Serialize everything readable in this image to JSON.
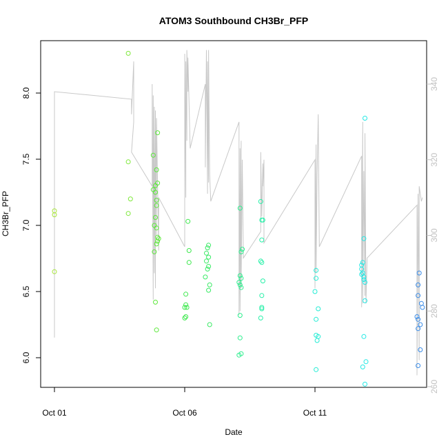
{
  "chart_data": {
    "type": "scatter",
    "title": "ATOM3 Southbound CH3Br_PFP",
    "xlabel": "Date",
    "ylabel": "CH3Br_PFP",
    "xlim": [
      "2016-10-01",
      "2016-10-15.5"
    ],
    "ylim": [
      5.78,
      8.4
    ],
    "y2lim": [
      258.8,
      351.1
    ],
    "x_ticks": [
      {
        "value": "2016-10-01",
        "label": "Oct 01"
      },
      {
        "value": "2016-10-06",
        "label": "Oct 06"
      },
      {
        "value": "2016-10-11",
        "label": "Oct 11"
      }
    ],
    "y_ticks": [
      "6.0",
      "6.5",
      "7.0",
      "7.5",
      "8.0"
    ],
    "y2_ticks": [
      "260",
      "280",
      "300",
      "320",
      "340"
    ],
    "grid": false,
    "legend": "none",
    "point_colors": {
      "early": "#a8e63a",
      "green": "#3ce83c",
      "mid": "#22f08c",
      "cyan": "#22e8d8",
      "blue": "#3a8ce8"
    },
    "secondary_line_color": "#c8c8c8",
    "points": [
      {
        "x": "2016-10-01T00:00",
        "y": 7.11,
        "c": "#a8e63a"
      },
      {
        "x": "2016-10-01T00:00",
        "y": 7.08,
        "c": "#a8e63a"
      },
      {
        "x": "2016-10-01T00:00",
        "y": 6.65,
        "c": "#a8e63a"
      },
      {
        "x": "2016-10-03T20:00",
        "y": 8.3,
        "c": "#7ee83a"
      },
      {
        "x": "2016-10-03T20:00",
        "y": 7.48,
        "c": "#7ee83a"
      },
      {
        "x": "2016-10-03T22:00",
        "y": 7.2,
        "c": "#7ee83a"
      },
      {
        "x": "2016-10-03T20:00",
        "y": 7.09,
        "c": "#7ee83a"
      },
      {
        "x": "2016-10-04T19:00",
        "y": 7.53,
        "c": "#5ce83a"
      },
      {
        "x": "2016-10-04T19:00",
        "y": 7.27,
        "c": "#5ce83a"
      },
      {
        "x": "2016-10-04T21:00",
        "y": 7.25,
        "c": "#5ce83a"
      },
      {
        "x": "2016-10-04T23:00",
        "y": 7.7,
        "c": "#5ce83a"
      },
      {
        "x": "2016-10-04T22:00",
        "y": 7.42,
        "c": "#5ce83a"
      },
      {
        "x": "2016-10-04T23:00",
        "y": 7.32,
        "c": "#5ce83a"
      },
      {
        "x": "2016-10-04T21:00",
        "y": 7.3,
        "c": "#5ce83a"
      },
      {
        "x": "2016-10-04T22:00",
        "y": 7.19,
        "c": "#5ce83a"
      },
      {
        "x": "2016-10-04T22:00",
        "y": 7.15,
        "c": "#5ce83a"
      },
      {
        "x": "2016-10-04T21:00",
        "y": 7.06,
        "c": "#5ce83a"
      },
      {
        "x": "2016-10-04T20:00",
        "y": 7.0,
        "c": "#5ce83a"
      },
      {
        "x": "2016-10-04T22:00",
        "y": 6.98,
        "c": "#5ce83a"
      },
      {
        "x": "2016-10-04T23:00",
        "y": 6.91,
        "c": "#5ce83a"
      },
      {
        "x": "2016-10-05T00:00",
        "y": 6.9,
        "c": "#5ce83a"
      },
      {
        "x": "2016-10-04T23:00",
        "y": 6.88,
        "c": "#5ce83a"
      },
      {
        "x": "2016-10-04T22:00",
        "y": 6.86,
        "c": "#5ce83a"
      },
      {
        "x": "2016-10-04T20:00",
        "y": 6.8,
        "c": "#5ce83a"
      },
      {
        "x": "2016-10-04T21:00",
        "y": 6.42,
        "c": "#5ce83a"
      },
      {
        "x": "2016-10-04T22:00",
        "y": 6.21,
        "c": "#5ce83a"
      },
      {
        "x": "2016-10-06T03:00",
        "y": 7.03,
        "c": "#3ce84c"
      },
      {
        "x": "2016-10-06T04:00",
        "y": 6.81,
        "c": "#3ce84c"
      },
      {
        "x": "2016-10-06T04:00",
        "y": 6.72,
        "c": "#3ce84c"
      },
      {
        "x": "2016-10-06T01:00",
        "y": 6.48,
        "c": "#3ce84c"
      },
      {
        "x": "2016-10-06T01:00",
        "y": 6.4,
        "c": "#3ce84c"
      },
      {
        "x": "2016-10-06T02:00",
        "y": 6.38,
        "c": "#3ce84c"
      },
      {
        "x": "2016-10-06T00:00",
        "y": 6.38,
        "c": "#3ce84c"
      },
      {
        "x": "2016-10-06T01:00",
        "y": 6.31,
        "c": "#3ce84c"
      },
      {
        "x": "2016-10-06T00:00",
        "y": 6.3,
        "c": "#3ce84c"
      },
      {
        "x": "2016-10-06T22:00",
        "y": 6.85,
        "c": "#38ea64"
      },
      {
        "x": "2016-10-06T21:00",
        "y": 6.83,
        "c": "#38ea64"
      },
      {
        "x": "2016-10-06T20:00",
        "y": 6.79,
        "c": "#38ea64"
      },
      {
        "x": "2016-10-06T22:00",
        "y": 6.76,
        "c": "#38ea64"
      },
      {
        "x": "2016-10-06T20:00",
        "y": 6.73,
        "c": "#38ea64"
      },
      {
        "x": "2016-10-06T22:00",
        "y": 6.69,
        "c": "#38ea64"
      },
      {
        "x": "2016-10-06T21:00",
        "y": 6.67,
        "c": "#38ea64"
      },
      {
        "x": "2016-10-06T19:00",
        "y": 6.61,
        "c": "#38ea64"
      },
      {
        "x": "2016-10-06T23:00",
        "y": 6.55,
        "c": "#38ea64"
      },
      {
        "x": "2016-10-06T22:00",
        "y": 6.51,
        "c": "#38ea64"
      },
      {
        "x": "2016-10-06T23:00",
        "y": 6.25,
        "c": "#38ea64"
      },
      {
        "x": "2016-10-08T03:00",
        "y": 7.13,
        "c": "#2aee8c"
      },
      {
        "x": "2016-10-08T05:00",
        "y": 6.82,
        "c": "#2aee8c"
      },
      {
        "x": "2016-10-08T04:00",
        "y": 6.8,
        "c": "#2aee8c"
      },
      {
        "x": "2016-10-08T03:00",
        "y": 6.62,
        "c": "#2aee8c"
      },
      {
        "x": "2016-10-08T04:00",
        "y": 6.6,
        "c": "#2aee8c"
      },
      {
        "x": "2016-10-08T02:00",
        "y": 6.57,
        "c": "#2aee8c"
      },
      {
        "x": "2016-10-08T03:00",
        "y": 6.55,
        "c": "#2aee8c"
      },
      {
        "x": "2016-10-08T04:00",
        "y": 6.53,
        "c": "#2aee8c"
      },
      {
        "x": "2016-10-08T03:00",
        "y": 6.32,
        "c": "#2aee8c"
      },
      {
        "x": "2016-10-08T03:00",
        "y": 6.15,
        "c": "#2aee8c"
      },
      {
        "x": "2016-10-08T04:00",
        "y": 6.03,
        "c": "#2aee8c"
      },
      {
        "x": "2016-10-08T02:00",
        "y": 6.02,
        "c": "#2aee8c"
      },
      {
        "x": "2016-10-08T22:00",
        "y": 7.18,
        "c": "#26f0a8"
      },
      {
        "x": "2016-10-08T23:00",
        "y": 7.04,
        "c": "#26f0a8"
      },
      {
        "x": "2016-10-09T00:00",
        "y": 7.04,
        "c": "#26f0a8"
      },
      {
        "x": "2016-10-08T23:00",
        "y": 6.89,
        "c": "#26f0a8"
      },
      {
        "x": "2016-10-08T22:00",
        "y": 6.73,
        "c": "#26f0a8"
      },
      {
        "x": "2016-10-08T23:00",
        "y": 6.72,
        "c": "#26f0a8"
      },
      {
        "x": "2016-10-09T00:00",
        "y": 6.58,
        "c": "#26f0a8"
      },
      {
        "x": "2016-10-08T23:00",
        "y": 6.47,
        "c": "#26f0a8"
      },
      {
        "x": "2016-10-08T23:00",
        "y": 6.38,
        "c": "#26f0a8"
      },
      {
        "x": "2016-10-08T23:00",
        "y": 6.37,
        "c": "#26f0a8"
      },
      {
        "x": "2016-10-08T22:00",
        "y": 6.3,
        "c": "#26f0a8"
      },
      {
        "x": "2016-10-11T01:00",
        "y": 6.66,
        "c": "#22ecd4"
      },
      {
        "x": "2016-10-11T01:00",
        "y": 6.6,
        "c": "#22ecd4"
      },
      {
        "x": "2016-10-11T00:00",
        "y": 6.5,
        "c": "#22ecd4"
      },
      {
        "x": "2016-10-11T03:00",
        "y": 6.37,
        "c": "#22ecd4"
      },
      {
        "x": "2016-10-11T01:00",
        "y": 6.29,
        "c": "#22ecd4"
      },
      {
        "x": "2016-10-11T01:00",
        "y": 6.17,
        "c": "#22ecd4"
      },
      {
        "x": "2016-10-11T03:00",
        "y": 6.16,
        "c": "#22ecd4"
      },
      {
        "x": "2016-10-11T02:00",
        "y": 6.13,
        "c": "#22ecd4"
      },
      {
        "x": "2016-10-11T01:00",
        "y": 5.91,
        "c": "#22ecd4"
      },
      {
        "x": "2016-10-12T22:00",
        "y": 7.81,
        "c": "#22e8e4"
      },
      {
        "x": "2016-10-12T21:00",
        "y": 6.9,
        "c": "#22e8e4"
      },
      {
        "x": "2016-10-12T20:00",
        "y": 6.72,
        "c": "#22e8e4"
      },
      {
        "x": "2016-10-12T19:00",
        "y": 6.7,
        "c": "#22e8e4"
      },
      {
        "x": "2016-10-12T19:00",
        "y": 6.67,
        "c": "#22e8e4"
      },
      {
        "x": "2016-10-12T20:00",
        "y": 6.64,
        "c": "#22e8e4"
      },
      {
        "x": "2016-10-12T19:00",
        "y": 6.63,
        "c": "#22e8e4"
      },
      {
        "x": "2016-10-12T21:00",
        "y": 6.61,
        "c": "#22e8e4"
      },
      {
        "x": "2016-10-12T21:00",
        "y": 6.59,
        "c": "#22e8e4"
      },
      {
        "x": "2016-10-12T22:00",
        "y": 6.57,
        "c": "#22e8e4"
      },
      {
        "x": "2016-10-12T22:00",
        "y": 6.43,
        "c": "#22e8e4"
      },
      {
        "x": "2016-10-12T21:00",
        "y": 6.16,
        "c": "#22e8e4"
      },
      {
        "x": "2016-10-12T23:00",
        "y": 5.97,
        "c": "#22e8e4"
      },
      {
        "x": "2016-10-12T20:00",
        "y": 5.93,
        "c": "#22e8e4"
      },
      {
        "x": "2016-10-12T22:00",
        "y": 5.8,
        "c": "#22e8e4"
      },
      {
        "x": "2016-10-15T00:00",
        "y": 6.64,
        "c": "#3a8ce8"
      },
      {
        "x": "2016-10-14T23:00",
        "y": 6.55,
        "c": "#3a8ce8"
      },
      {
        "x": "2016-10-14T23:00",
        "y": 6.47,
        "c": "#3a8ce8"
      },
      {
        "x": "2016-10-15T02:00",
        "y": 6.41,
        "c": "#3a8ce8"
      },
      {
        "x": "2016-10-15T03:00",
        "y": 6.38,
        "c": "#3a8ce8"
      },
      {
        "x": "2016-10-14T22:00",
        "y": 6.31,
        "c": "#3a8ce8"
      },
      {
        "x": "2016-10-14T23:00",
        "y": 6.29,
        "c": "#3a8ce8"
      },
      {
        "x": "2016-10-15T01:00",
        "y": 6.25,
        "c": "#3a8ce8"
      },
      {
        "x": "2016-10-14T23:00",
        "y": 6.22,
        "c": "#3a8ce8"
      },
      {
        "x": "2016-10-15T01:00",
        "y": 6.06,
        "c": "#3a8ce8"
      },
      {
        "x": "2016-10-14T23:00",
        "y": 5.94,
        "c": "#3a8ce8"
      }
    ],
    "secondary_series": {
      "axis": "right",
      "points": [
        [
          "2016-10-01T00:00",
          273
        ],
        [
          "2016-10-01T00:00",
          338
        ],
        [
          "2016-10-03T23:00",
          336
        ],
        [
          "2016-10-03T23:00",
          332
        ],
        [
          "2016-10-04T01:00",
          346
        ],
        [
          "2016-10-04T01:00",
          330
        ],
        [
          "2016-10-03T23:00",
          322
        ],
        [
          "2016-10-04T18:00",
          313
        ],
        [
          "2016-10-04T18:00",
          340
        ],
        [
          "2016-10-04T19:00",
          283
        ],
        [
          "2016-10-04T19:00",
          337
        ],
        [
          "2016-10-04T20:00",
          290
        ],
        [
          "2016-10-04T20:00",
          334
        ],
        [
          "2016-10-04T21:00",
          286
        ],
        [
          "2016-10-04T21:00",
          333
        ],
        [
          "2016-10-04T22:00",
          300
        ],
        [
          "2016-10-04T22:00",
          331
        ],
        [
          "2016-10-05T00:00",
          296
        ],
        [
          "2016-10-05T00:00",
          310
        ],
        [
          "2016-10-06T00:00",
          297
        ],
        [
          "2016-10-06T00:00",
          348
        ],
        [
          "2016-10-06T01:00",
          310
        ],
        [
          "2016-10-06T01:00",
          346
        ],
        [
          "2016-10-06T02:00",
          325
        ],
        [
          "2016-10-06T02:00",
          349
        ],
        [
          "2016-10-06T03:00",
          338
        ],
        [
          "2016-10-06T03:00",
          347
        ],
        [
          "2016-10-06T04:00",
          335
        ],
        [
          "2016-10-06T05:00",
          323
        ],
        [
          "2016-10-06T19:00",
          340
        ],
        [
          "2016-10-06T19:00",
          318
        ],
        [
          "2016-10-06T20:00",
          349
        ],
        [
          "2016-10-06T21:00",
          311
        ],
        [
          "2016-10-06T21:00",
          346
        ],
        [
          "2016-10-06T22:00",
          314
        ],
        [
          "2016-10-06T22:00",
          349
        ],
        [
          "2016-10-06T23:00",
          316
        ],
        [
          "2016-10-07T00:00",
          309
        ],
        [
          "2016-10-08T02:00",
          330
        ],
        [
          "2016-10-08T02:00",
          279
        ],
        [
          "2016-10-08T03:00",
          323
        ],
        [
          "2016-10-08T03:00",
          280
        ],
        [
          "2016-10-08T04:00",
          325
        ],
        [
          "2016-10-08T04:00",
          286
        ],
        [
          "2016-10-08T05:00",
          320
        ],
        [
          "2016-10-08T06:00",
          294
        ],
        [
          "2016-10-08T22:00",
          301
        ],
        [
          "2016-10-08T22:00",
          322
        ],
        [
          "2016-10-08T23:00",
          305
        ],
        [
          "2016-10-09T00:00",
          319
        ],
        [
          "2016-10-09T00:00",
          313
        ],
        [
          "2016-10-09T01:00",
          320
        ],
        [
          "2016-10-09T01:00",
          298
        ],
        [
          "2016-10-11T00:00",
          320
        ],
        [
          "2016-10-11T00:00",
          286
        ],
        [
          "2016-10-11T01:00",
          324
        ],
        [
          "2016-10-11T01:00",
          290
        ],
        [
          "2016-10-11T02:00",
          316
        ],
        [
          "2016-10-11T03:00",
          332
        ],
        [
          "2016-10-11T04:00",
          297
        ],
        [
          "2016-10-12T19:00",
          321
        ],
        [
          "2016-10-12T19:00",
          281
        ],
        [
          "2016-10-12T20:00",
          330
        ],
        [
          "2016-10-12T20:00",
          282
        ],
        [
          "2016-10-12T21:00",
          317
        ],
        [
          "2016-10-12T22:00",
          284
        ],
        [
          "2016-10-12T22:00",
          327
        ],
        [
          "2016-10-12T23:00",
          282
        ],
        [
          "2016-10-13T00:00",
          294
        ],
        [
          "2016-10-14T22:00",
          308
        ],
        [
          "2016-10-14T22:00",
          263
        ],
        [
          "2016-10-14T23:00",
          311
        ],
        [
          "2016-10-15T00:00",
          267
        ],
        [
          "2016-10-15T00:00",
          313
        ],
        [
          "2016-10-15T02:00",
          309
        ],
        [
          "2016-10-15T03:00",
          310
        ]
      ]
    }
  }
}
